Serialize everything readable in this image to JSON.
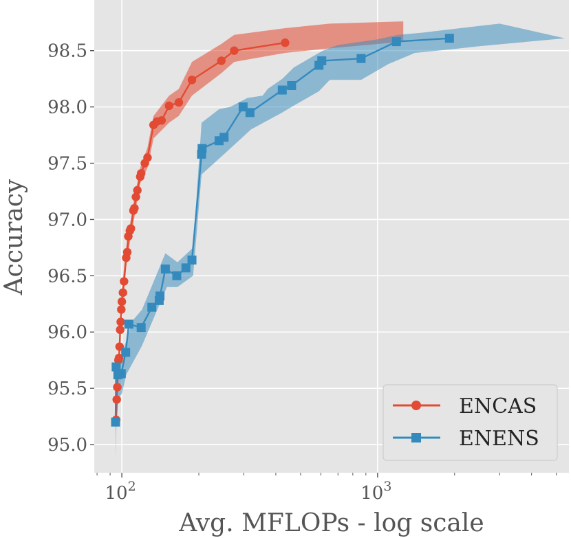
{
  "chart_data": {
    "type": "line",
    "title": "",
    "xlabel": "Avg. MFLOPs - log scale",
    "ylabel": "Accuracy",
    "xscale": "log",
    "xlim": [
      78,
      5600
    ],
    "ylim": [
      94.75,
      98.95
    ],
    "grid": true,
    "legend_position": "bottom-right",
    "x_tick_labels": [
      {
        "value": 100,
        "base": "10",
        "exp": "2"
      },
      {
        "value": 1000,
        "base": "10",
        "exp": "3"
      }
    ],
    "y_ticks": [
      95.0,
      95.5,
      96.0,
      96.5,
      97.0,
      97.5,
      98.0,
      98.5
    ],
    "y_tick_labels": [
      "95.0",
      "95.5",
      "96.0",
      "96.5",
      "97.0",
      "97.5",
      "98.0",
      "98.5"
    ],
    "series": [
      {
        "name": "ENCAS",
        "color": "#E24A33",
        "marker": "circle",
        "points": [
          [
            95,
            95.22
          ],
          [
            95.5,
            95.4
          ],
          [
            96,
            95.51
          ],
          [
            96.5,
            95.62
          ],
          [
            97,
            95.75
          ],
          [
            97.5,
            95.77
          ],
          [
            98,
            95.87
          ],
          [
            98.5,
            96.02
          ],
          [
            99,
            96.09
          ],
          [
            99.5,
            96.2
          ],
          [
            100,
            96.27
          ],
          [
            101,
            96.35
          ],
          [
            102,
            96.45
          ],
          [
            104,
            96.66
          ],
          [
            105,
            96.71
          ],
          [
            106,
            96.85
          ],
          [
            107.5,
            96.9
          ],
          [
            108.5,
            96.92
          ],
          [
            111,
            97.08
          ],
          [
            112,
            97.1
          ],
          [
            113.5,
            97.2
          ],
          [
            115,
            97.26
          ],
          [
            118,
            97.38
          ],
          [
            119,
            97.41
          ],
          [
            123,
            97.5
          ],
          [
            126,
            97.55
          ],
          [
            133,
            97.84
          ],
          [
            137,
            97.87
          ],
          [
            143,
            97.88
          ],
          [
            153,
            98.01
          ],
          [
            167,
            98.04
          ],
          [
            188,
            98.24
          ],
          [
            245,
            98.41
          ],
          [
            275,
            98.5
          ],
          [
            435,
            98.57
          ]
        ],
        "band": [
          [
            95,
            95.16,
            95.28
          ],
          [
            97,
            95.68,
            95.84
          ],
          [
            100,
            96.16,
            96.38
          ],
          [
            104,
            96.58,
            96.76
          ],
          [
            108,
            96.82,
            96.98
          ],
          [
            112,
            97.02,
            97.2
          ],
          [
            118,
            97.32,
            97.46
          ],
          [
            126,
            97.46,
            97.64
          ],
          [
            133,
            97.72,
            97.92
          ],
          [
            153,
            97.86,
            98.1
          ],
          [
            167,
            97.92,
            98.16
          ],
          [
            188,
            98.1,
            98.4
          ],
          [
            245,
            98.3,
            98.56
          ],
          [
            275,
            98.4,
            98.64
          ],
          [
            435,
            98.48,
            98.7
          ],
          [
            650,
            98.52,
            98.74
          ],
          [
            1260,
            98.58,
            98.76
          ]
        ]
      },
      {
        "name": "ENENS",
        "color": "#348ABD",
        "marker": "square",
        "points": [
          [
            94.5,
            95.2
          ],
          [
            95,
            95.69
          ],
          [
            96.5,
            95.62
          ],
          [
            99.5,
            95.63
          ],
          [
            103.5,
            95.82
          ],
          [
            106.5,
            96.07
          ],
          [
            119,
            96.04
          ],
          [
            131,
            96.22
          ],
          [
            140,
            96.28
          ],
          [
            141,
            96.32
          ],
          [
            148,
            96.56
          ],
          [
            164,
            96.5
          ],
          [
            178,
            96.57
          ],
          [
            188,
            96.64
          ],
          [
            205,
            97.58
          ],
          [
            206,
            97.63
          ],
          [
            240,
            97.7
          ],
          [
            251,
            97.73
          ],
          [
            298,
            98.0
          ],
          [
            317,
            97.95
          ],
          [
            424,
            98.15
          ],
          [
            461,
            98.19
          ],
          [
            590,
            98.37
          ],
          [
            605,
            98.41
          ],
          [
            862,
            98.43
          ],
          [
            1185,
            98.58
          ],
          [
            1910,
            98.61
          ]
        ],
        "band_upper": [
          [
            94.5,
            95.3
          ],
          [
            95,
            95.78
          ],
          [
            100,
            95.8
          ],
          [
            110,
            96.1
          ],
          [
            120,
            96.2
          ],
          [
            148,
            96.7
          ],
          [
            165,
            96.62
          ],
          [
            190,
            96.75
          ],
          [
            205,
            97.86
          ],
          [
            240,
            97.98
          ],
          [
            265,
            98.0
          ],
          [
            310,
            98.08
          ],
          [
            355,
            98.1
          ],
          [
            372,
            98.16
          ],
          [
            424,
            98.25
          ],
          [
            470,
            98.35
          ],
          [
            550,
            98.44
          ],
          [
            610,
            98.5
          ],
          [
            700,
            98.55
          ],
          [
            1000,
            98.6
          ],
          [
            1200,
            98.64
          ],
          [
            1500,
            98.66
          ],
          [
            2500,
            98.72
          ],
          [
            3000,
            98.74
          ],
          [
            5400,
            98.61
          ]
        ],
        "band_lower": [
          [
            5400,
            98.61
          ],
          [
            2500,
            98.54
          ],
          [
            1900,
            98.51
          ],
          [
            1400,
            98.48
          ],
          [
            1100,
            98.38
          ],
          [
            862,
            98.24
          ],
          [
            650,
            98.24
          ],
          [
            590,
            98.14
          ],
          [
            461,
            98.0
          ],
          [
            424,
            97.95
          ],
          [
            320,
            97.8
          ],
          [
            251,
            97.58
          ],
          [
            205,
            97.4
          ],
          [
            190,
            96.5
          ],
          [
            165,
            96.4
          ],
          [
            150,
            96.4
          ],
          [
            120,
            95.88
          ],
          [
            104,
            95.62
          ],
          [
            100,
            95.45
          ],
          [
            97,
            95.42
          ],
          [
            95,
            95.12
          ],
          [
            94.5,
            94.88
          ]
        ]
      }
    ]
  }
}
